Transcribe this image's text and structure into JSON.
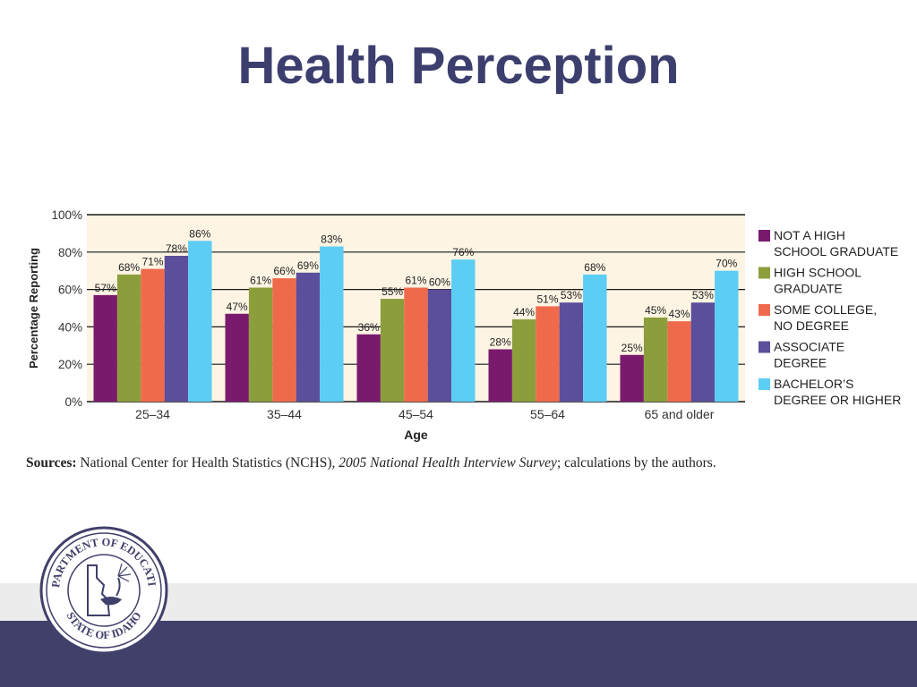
{
  "slide": {
    "title": "Health Perception"
  },
  "sources": {
    "label": "Sources:",
    "text_before": "National Center for Health Statistics (NCHS), ",
    "survey": "2005 National Health Interview Survey",
    "text_after": "; calculations by the authors."
  },
  "seal": {
    "top_text": "DEPARTMENT OF EDUCATION",
    "bottom_text": "STATE OF IDAHO"
  },
  "colors": {
    "title": "#3c3f6e",
    "plot_bg": "#fdf4e3",
    "band_dark": "#40406b",
    "band_light": "#ececec"
  },
  "chart_data": {
    "type": "bar",
    "xlabel": "Age",
    "ylabel": "Percentage Reporting",
    "ylim": [
      0,
      100
    ],
    "yticks": [
      "0%",
      "20%",
      "40%",
      "60%",
      "80%",
      "100%"
    ],
    "grid": true,
    "legend_position": "right",
    "categories": [
      "25–34",
      "35–44",
      "45–54",
      "55–64",
      "65 and older"
    ],
    "series": [
      {
        "name": "NOT A HIGH SCHOOL GRADUATE",
        "legend_lines": [
          "NOT A HIGH",
          "SCHOOL GRADUATE"
        ],
        "color": "#7a1a6d",
        "values": [
          57,
          47,
          36,
          28,
          25
        ],
        "labels": [
          "57%",
          "47%",
          "36%",
          "28%",
          "25%"
        ]
      },
      {
        "name": "HIGH SCHOOL GRADUATE",
        "legend_lines": [
          "HIGH SCHOOL",
          "GRADUATE"
        ],
        "color": "#8c9e3c",
        "values": [
          68,
          61,
          55,
          44,
          45
        ],
        "labels": [
          "68%",
          "61%",
          "55%",
          "44%",
          "45%"
        ]
      },
      {
        "name": "SOME COLLEGE, NO DEGREE",
        "legend_lines": [
          "SOME COLLEGE,",
          "NO DEGREE"
        ],
        "color": "#ef6a4b",
        "values": [
          71,
          66,
          61,
          51,
          43
        ],
        "labels": [
          "71%",
          "66%",
          "61%",
          "51%",
          "43%"
        ]
      },
      {
        "name": "ASSOCIATE DEGREE",
        "legend_lines": [
          "ASSOCIATE",
          "DEGREE"
        ],
        "color": "#5b4e9a",
        "values": [
          78,
          69,
          60,
          53,
          53
        ],
        "labels": [
          "78%",
          "69%",
          "60%",
          "53%",
          "53%"
        ]
      },
      {
        "name": "BACHELOR'S DEGREE OR HIGHER",
        "legend_lines": [
          "BACHELOR’S",
          "DEGREE OR HIGHER"
        ],
        "color": "#5ccdf4",
        "values": [
          86,
          83,
          76,
          68,
          70
        ],
        "labels": [
          "86%",
          "83%",
          "76%",
          "68%",
          "70%"
        ]
      }
    ]
  }
}
